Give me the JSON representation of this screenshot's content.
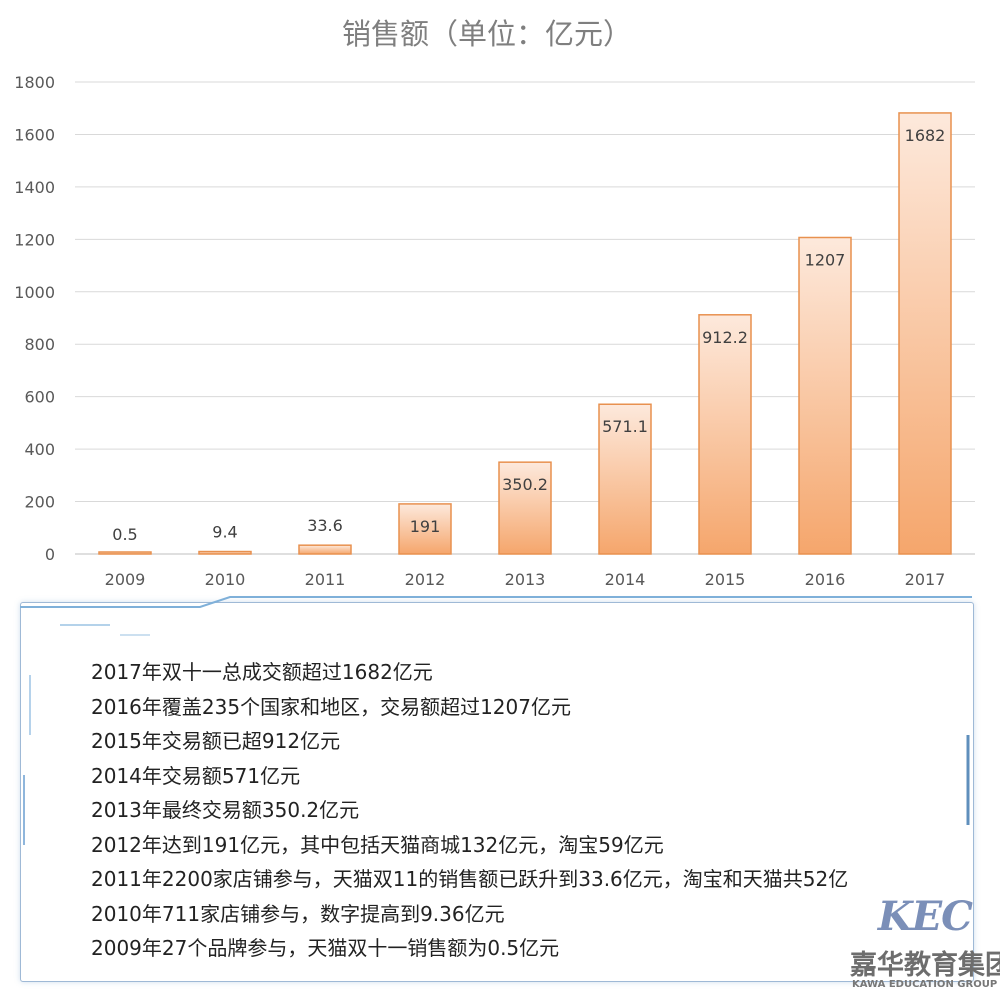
{
  "chart_data": {
    "type": "bar",
    "title": "销售额（单位：亿元）",
    "categories": [
      "2009",
      "2010",
      "2011",
      "2012",
      "2013",
      "2014",
      "2015",
      "2016",
      "2017"
    ],
    "values": [
      0.5,
      9.4,
      33.6,
      191,
      350.2,
      571.1,
      912.2,
      1207,
      1682
    ],
    "value_labels": [
      "0.5",
      "9.4",
      "33.6",
      "191",
      "350.2",
      "571.1",
      "912.2",
      "1207",
      "1682"
    ],
    "ylim": [
      0,
      1800
    ],
    "yticks": [
      0,
      200,
      400,
      600,
      800,
      1000,
      1200,
      1400,
      1600,
      1800
    ],
    "grid": true,
    "bar_color_top": "#fde9dc",
    "bar_color_bottom": "#f5a66c",
    "bar_border": "#e8914f"
  },
  "notes": [
    "2017年双十一总成交额超过1682亿元",
    "2016年覆盖235个国家和地区，交易额超过1207亿元",
    "2015年交易额已超912亿元",
    "2014年交易额571亿元",
    "2013年最终交易额350.2亿元",
    "2012年达到191亿元，其中包括天猫商城132亿元，淘宝59亿元",
    "2011年2200家店铺参与，天猫双11的销售额已跃升到33.6亿元，淘宝和天猫共52亿",
    "2010年711家店铺参与，数字提高到9.36亿元",
    "2009年27个品牌参与，天猫双十一销售额为0.5亿元"
  ],
  "logo": {
    "mark": "KEC",
    "name_cn": "嘉华教育集团",
    "name_en": "KAWA EDUCATION GROUP"
  }
}
